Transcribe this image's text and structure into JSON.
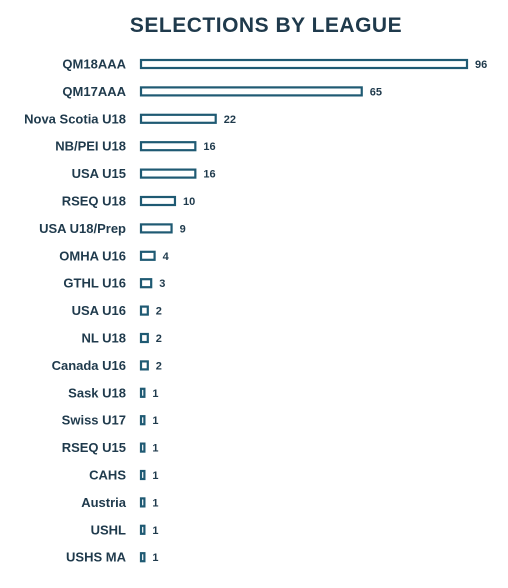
{
  "chart_data": {
    "type": "bar",
    "orientation": "horizontal",
    "title": "SELECTIONS BY LEAGUE",
    "categories": [
      "QM18AAA",
      "QM17AAA",
      "Nova Scotia U18",
      "NB/PEI U18",
      "USA U15",
      "RSEQ U18",
      "USA U18/Prep",
      "OMHA U16",
      "GTHL U16",
      "USA U16",
      "NL U18",
      "Canada U16",
      "Sask U18",
      "Swiss U17",
      "RSEQ U15",
      "CAHS",
      "Austria",
      "USHL",
      "USHS MA"
    ],
    "values": [
      96,
      65,
      22,
      16,
      16,
      10,
      9,
      4,
      3,
      2,
      2,
      2,
      1,
      1,
      1,
      1,
      1,
      1,
      1
    ],
    "xlim": [
      0,
      96
    ],
    "grid": false,
    "bar_fill": "#ffffff",
    "bar_stroke": "#1f5a73",
    "text_color": "#1f3a4c"
  }
}
